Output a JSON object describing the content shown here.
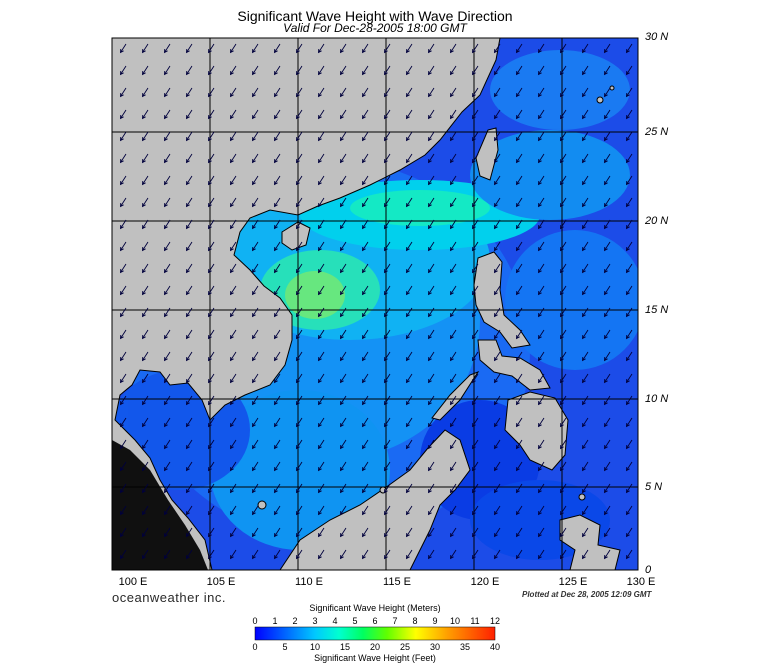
{
  "header": {
    "title": "Significant Wave Height with Wave Direction",
    "subtitle": "Valid For Dec-28-2005 18:00 GMT"
  },
  "map": {
    "lat_labels": [
      "30 N",
      "25 N",
      "20 N",
      "15 N",
      "10 N",
      "5 N",
      "0"
    ],
    "lon_labels": [
      "100 E",
      "105 E",
      "110 E",
      "115 E",
      "120 E",
      "125 E",
      "130 E"
    ],
    "extent": {
      "lon_min": 99,
      "lon_max": 129,
      "lat_min": 0,
      "lat_max": 30
    },
    "land_color": "#c0c0c0",
    "grid_color": "#000000",
    "arrow_color": "#00003c",
    "wave_direction": "from north-east",
    "hotspots_m": [
      {
        "name": "gulf-of-tonkin-max",
        "lon": 110.5,
        "lat": 16.5,
        "height_m": 3.6
      },
      {
        "name": "luzon-strait-max",
        "lon": 118.5,
        "lat": 21.0,
        "height_m": 3.0
      }
    ]
  },
  "footer": {
    "brand": "oceanweather inc.",
    "plotted": "Plotted at Dec 28, 2005 12:09 GMT"
  },
  "colorbar": {
    "title_meters": "Significant Wave Height (Meters)",
    "title_feet": "Significant Wave Height (Feet)",
    "meter_ticks": [
      "0",
      "1",
      "2",
      "3",
      "4",
      "5",
      "6",
      "7",
      "8",
      "9",
      "10",
      "11",
      "12"
    ],
    "feet_ticks": [
      "0",
      "5",
      "10",
      "15",
      "20",
      "25",
      "30",
      "35",
      "40"
    ],
    "colors": [
      "#0000ff",
      "#0050ff",
      "#00a0ff",
      "#00e8ff",
      "#00ffb0",
      "#00ff60",
      "#40ff00",
      "#a0ff00",
      "#ffff00",
      "#ffc800",
      "#ff8c00",
      "#ff4000"
    ]
  }
}
